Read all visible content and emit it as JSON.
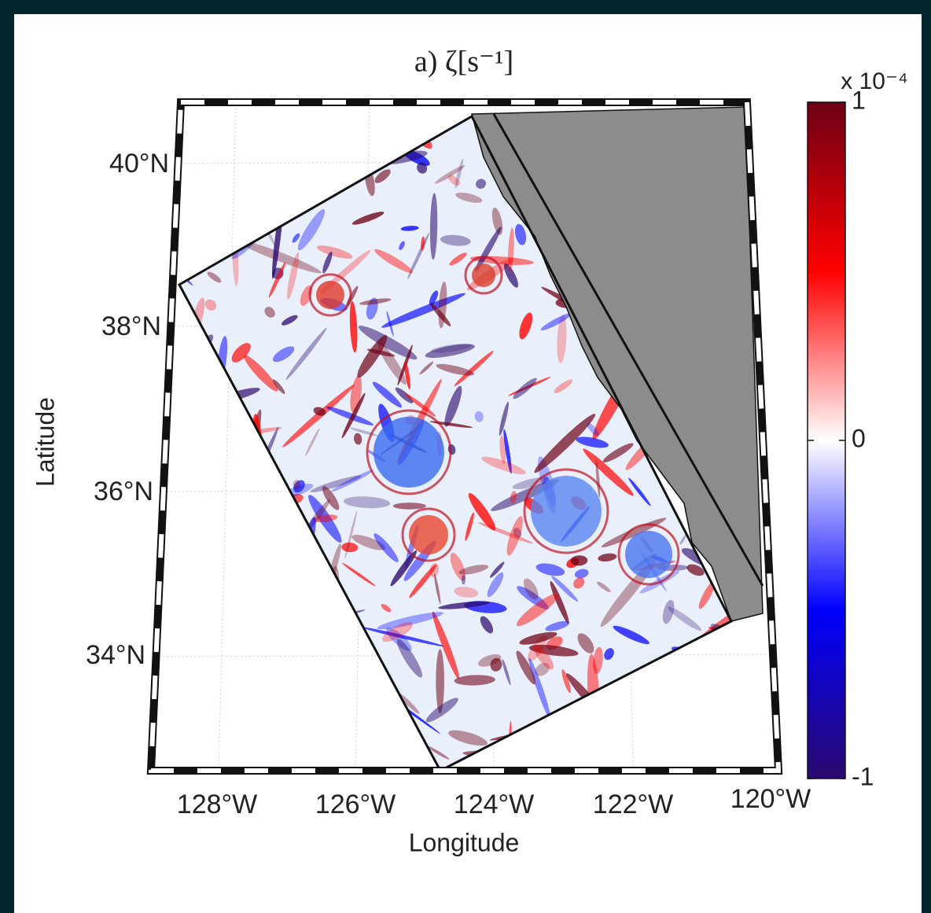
{
  "title": "a) ζ[s⁻¹]",
  "x_axis": {
    "label": "Longitude",
    "ticks": [
      "128°W",
      "126°W",
      "124°W",
      "122°W",
      "120°W"
    ]
  },
  "y_axis": {
    "label": "Latitude",
    "ticks": [
      "40°N",
      "38°N",
      "36°N",
      "34°N"
    ]
  },
  "colorbar": {
    "multiplier": "x 10⁻⁴",
    "lim": [
      -1,
      1
    ],
    "ticks": [
      -1,
      0,
      1
    ],
    "colormap": [
      "#2b0a6e",
      "#0000ff",
      "#ffffff",
      "#ff0000",
      "#6e0015"
    ]
  }
}
